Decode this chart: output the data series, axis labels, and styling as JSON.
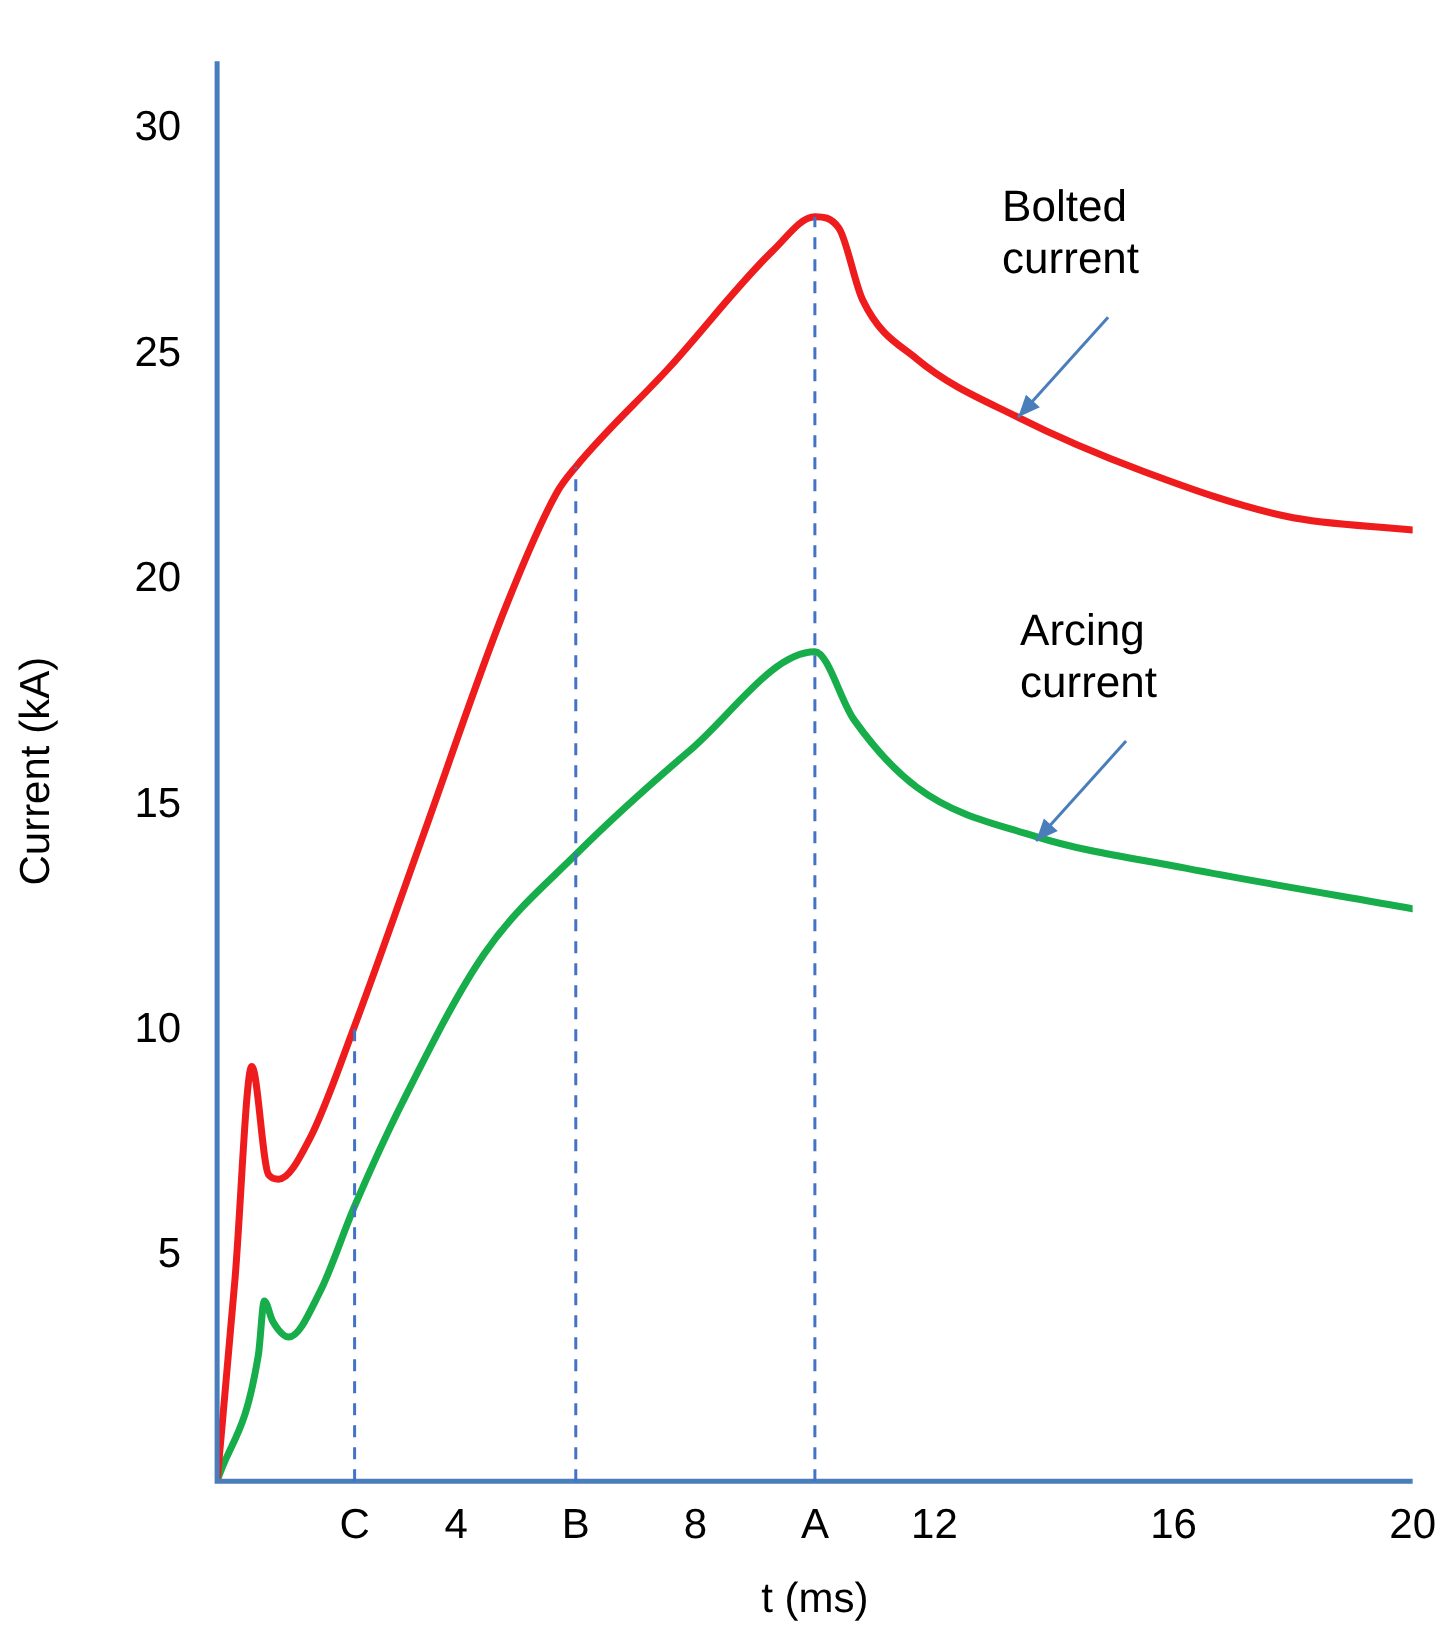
{
  "chart_data": {
    "type": "line",
    "xlabel": "t (ms)",
    "ylabel": "Current (kA)",
    "xlim": [
      0,
      20
    ],
    "ylim": [
      0,
      31.5
    ],
    "xticks": [
      {
        "value": 2.3,
        "label": "C"
      },
      4,
      {
        "value": 6,
        "label": "B"
      },
      8,
      {
        "value": 10,
        "label": "A"
      },
      12,
      16,
      20
    ],
    "yticks": [
      5,
      10,
      15,
      20,
      25,
      30
    ],
    "grid": false,
    "legend": false,
    "marker": "none",
    "line_style": "solid",
    "series": [
      {
        "color": "#ee1c1c",
        "x": [
          0,
          0.3,
          0.58,
          0.86,
          1.03,
          1.55,
          2.3,
          3.44,
          4.8,
          5.67,
          6,
          7.56,
          9.3,
          10,
          10.4,
          10.8,
          11.7,
          13.4,
          15.5,
          17.9,
          20
        ],
        "values": [
          0,
          4.5,
          9.2,
          6.8,
          6.7,
          7.6,
          10.1,
          14.3,
          19.3,
          21.9,
          22.5,
          24.7,
          27.3,
          28.05,
          27.8,
          26.2,
          24.9,
          23.6,
          22.4,
          21.4,
          21.1
        ]
      },
      {
        "color": "#16ad4a",
        "x": [
          0,
          0.69,
          0.79,
          0.93,
          1.2,
          1.72,
          2.3,
          3.1,
          4.47,
          6,
          7.9,
          10,
          10.65,
          11.7,
          13.7,
          16.2,
          20
        ],
        "values": [
          0,
          2.8,
          4.0,
          3.55,
          3.2,
          4.2,
          6.1,
          8.4,
          11.7,
          13.9,
          16.2,
          18.4,
          16.9,
          15.4,
          14.3,
          13.6,
          12.7
        ]
      }
    ],
    "ref_lines": [
      {
        "axis": "x",
        "value": 2.3,
        "color": "#4472c4",
        "line_style": "dashed"
      },
      {
        "axis": "x",
        "value": 6,
        "color": "#4472c4",
        "line_style": "dashed"
      },
      {
        "axis": "x",
        "value": 10,
        "color": "#4472c4",
        "line_style": "dashed"
      }
    ],
    "annotations": [
      {
        "text": "Bolted\ncurrent",
        "x": 13.4,
        "y": 23.6
      },
      {
        "text": "Arcing\ncurrent",
        "x": 13.7,
        "y": 14.2
      }
    ]
  }
}
